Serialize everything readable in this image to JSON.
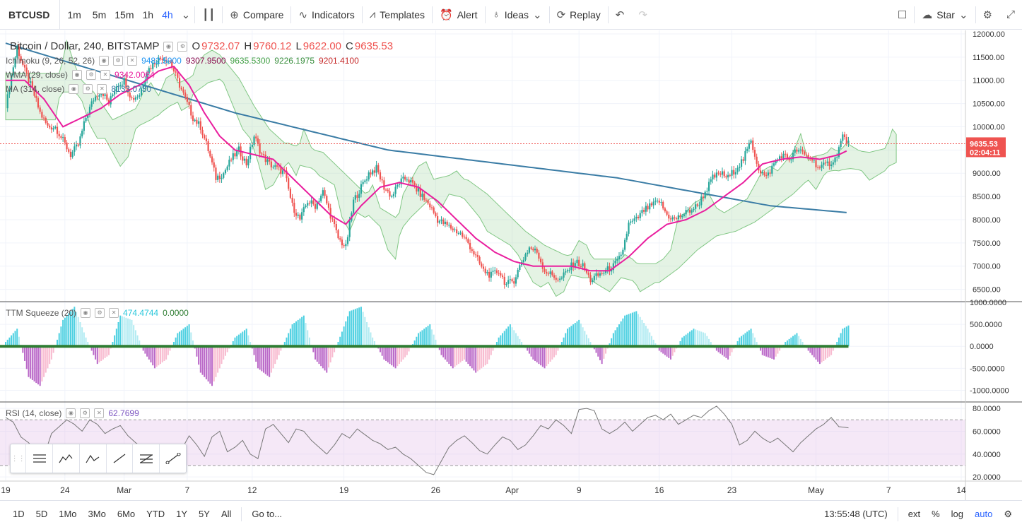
{
  "toolbar": {
    "symbol": "BTCUSD",
    "intervals": [
      "1m",
      "5m",
      "15m",
      "1h",
      "4h"
    ],
    "active_interval": "4h",
    "compare": "Compare",
    "indicators": "Indicators",
    "templates": "Templates",
    "alert": "Alert",
    "ideas": "Ideas",
    "replay": "Replay",
    "star": "Star"
  },
  "legend": {
    "title": "Bitcoin / Dollar, 240, BITSTAMP",
    "o_label": "O",
    "o": "9732.07",
    "h_label": "H",
    "h": "9760.12",
    "l_label": "L",
    "l": "9622.00",
    "c_label": "C",
    "c": "9635.53",
    "ichimoku": "Ichimoku (9, 26, 52, 26)",
    "ichimoku_values": [
      "9482.5900",
      "9307.9500",
      "9635.5300",
      "9226.1975",
      "9201.4100"
    ],
    "wma": "WMA (29, close)",
    "wma_value": "9342.0064",
    "ma": "MA (314, close)",
    "ma_value": "8133.0730"
  },
  "ttm": {
    "label": "TTM Squeeze (20)",
    "v1": "474.4744",
    "v2": "0.0000"
  },
  "rsi": {
    "label": "RSI (14, close)",
    "value": "62.7699"
  },
  "price_tag": "9635.53",
  "countdown": "02:04:11",
  "colors": {
    "up": "#26a69a",
    "down": "#ef5350",
    "wma": "#e91e9e",
    "ma": "#3a7ca5",
    "accent": "#2962ff"
  },
  "chart_data": {
    "type": "line",
    "price_axis": {
      "min": 6250,
      "max": 12000,
      "ticks": [
        12000,
        11500,
        11000,
        10500,
        10000,
        9500,
        9000,
        8500,
        8000,
        7500,
        7000,
        6500
      ]
    },
    "ttm_axis": {
      "min": -1250,
      "max": 1000,
      "ticks": [
        1000,
        500,
        0,
        -500,
        -1000
      ],
      "tick_labels": [
        "1000.0000",
        "500.0000",
        "0.0000",
        "-500.0000",
        "-1000.0000"
      ]
    },
    "rsi_axis": {
      "min": 17,
      "max": 85,
      "ticks": [
        80,
        60,
        40,
        20
      ],
      "tick_labels": [
        "80.0000",
        "60.0000",
        "40.0000",
        "20.0000"
      ],
      "bands": [
        70,
        30
      ]
    },
    "x_ticks": [
      "19",
      "24",
      "Mar",
      "7",
      "12",
      "19",
      "26",
      "Apr",
      "9",
      "16",
      "23",
      "May",
      "7",
      "14"
    ],
    "x_tick_index": [
      0,
      31,
      62,
      95,
      129,
      177,
      225,
      265,
      300,
      342,
      380,
      424,
      462,
      500
    ],
    "price_path": [
      [
        0,
        10400
      ],
      [
        3,
        11100
      ],
      [
        6,
        11700
      ],
      [
        10,
        11200
      ],
      [
        14,
        10800
      ],
      [
        18,
        10300
      ],
      [
        22,
        10000
      ],
      [
        26,
        10000
      ],
      [
        30,
        9700
      ],
      [
        34,
        9400
      ],
      [
        38,
        9600
      ],
      [
        42,
        10200
      ],
      [
        46,
        10600
      ],
      [
        50,
        10800
      ],
      [
        54,
        10500
      ],
      [
        58,
        10900
      ],
      [
        62,
        11000
      ],
      [
        66,
        10600
      ],
      [
        70,
        10700
      ],
      [
        74,
        11200
      ],
      [
        78,
        11400
      ],
      [
        82,
        11500
      ],
      [
        86,
        11400
      ],
      [
        90,
        11000
      ],
      [
        94,
        10600
      ],
      [
        98,
        10200
      ],
      [
        102,
        10000
      ],
      [
        106,
        9500
      ],
      [
        110,
        8900
      ],
      [
        114,
        9000
      ],
      [
        118,
        9300
      ],
      [
        122,
        9500
      ],
      [
        126,
        9200
      ],
      [
        130,
        9800
      ],
      [
        134,
        9400
      ],
      [
        138,
        9200
      ],
      [
        142,
        9100
      ],
      [
        146,
        9000
      ],
      [
        150,
        8300
      ],
      [
        154,
        8000
      ],
      [
        158,
        8400
      ],
      [
        162,
        8300
      ],
      [
        166,
        8600
      ],
      [
        170,
        8100
      ],
      [
        174,
        7600
      ],
      [
        178,
        7400
      ],
      [
        182,
        8400
      ],
      [
        186,
        8700
      ],
      [
        190,
        9000
      ],
      [
        194,
        9100
      ],
      [
        198,
        8700
      ],
      [
        202,
        8500
      ],
      [
        206,
        8800
      ],
      [
        210,
        8900
      ],
      [
        214,
        8700
      ],
      [
        218,
        8500
      ],
      [
        222,
        8300
      ],
      [
        226,
        8000
      ],
      [
        230,
        7900
      ],
      [
        234,
        7800
      ],
      [
        238,
        7700
      ],
      [
        242,
        7500
      ],
      [
        246,
        7200
      ],
      [
        250,
        6900
      ],
      [
        254,
        6800
      ],
      [
        258,
        6900
      ],
      [
        262,
        6600
      ],
      [
        266,
        6700
      ],
      [
        270,
        7100
      ],
      [
        274,
        7400
      ],
      [
        278,
        7300
      ],
      [
        282,
        6900
      ],
      [
        286,
        6800
      ],
      [
        290,
        6700
      ],
      [
        294,
        6900
      ],
      [
        298,
        7100
      ],
      [
        302,
        7000
      ],
      [
        306,
        6700
      ],
      [
        310,
        6800
      ],
      [
        314,
        6900
      ],
      [
        318,
        7000
      ],
      [
        322,
        7200
      ],
      [
        326,
        7900
      ],
      [
        330,
        8000
      ],
      [
        334,
        8200
      ],
      [
        338,
        8300
      ],
      [
        342,
        8400
      ],
      [
        346,
        8100
      ],
      [
        350,
        8000
      ],
      [
        354,
        8100
      ],
      [
        358,
        8200
      ],
      [
        362,
        8300
      ],
      [
        366,
        8600
      ],
      [
        370,
        8900
      ],
      [
        374,
        9000
      ],
      [
        378,
        8900
      ],
      [
        382,
        9100
      ],
      [
        386,
        9300
      ],
      [
        390,
        9700
      ],
      [
        394,
        9100
      ],
      [
        398,
        8900
      ],
      [
        402,
        9200
      ],
      [
        406,
        9400
      ],
      [
        410,
        9300
      ],
      [
        414,
        9500
      ],
      [
        418,
        9400
      ],
      [
        422,
        9300
      ],
      [
        426,
        9100
      ],
      [
        430,
        9200
      ],
      [
        434,
        9300
      ],
      [
        438,
        9800
      ],
      [
        441,
        9635
      ]
    ],
    "wma_path": [
      [
        0,
        11000
      ],
      [
        10,
        11000
      ],
      [
        20,
        10600
      ],
      [
        30,
        10000
      ],
      [
        40,
        10200
      ],
      [
        50,
        10400
      ],
      [
        60,
        10700
      ],
      [
        70,
        10900
      ],
      [
        80,
        11200
      ],
      [
        88,
        11300
      ],
      [
        96,
        10900
      ],
      [
        104,
        10300
      ],
      [
        112,
        9800
      ],
      [
        120,
        9500
      ],
      [
        130,
        9400
      ],
      [
        140,
        9300
      ],
      [
        150,
        8900
      ],
      [
        160,
        8500
      ],
      [
        170,
        8100
      ],
      [
        178,
        7900
      ],
      [
        186,
        8300
      ],
      [
        196,
        8700
      ],
      [
        206,
        8800
      ],
      [
        216,
        8700
      ],
      [
        226,
        8400
      ],
      [
        236,
        8000
      ],
      [
        246,
        7600
      ],
      [
        256,
        7300
      ],
      [
        266,
        7100
      ],
      [
        276,
        7000
      ],
      [
        286,
        7000
      ],
      [
        296,
        7000
      ],
      [
        306,
        6900
      ],
      [
        316,
        6900
      ],
      [
        326,
        7200
      ],
      [
        336,
        7600
      ],
      [
        346,
        7900
      ],
      [
        356,
        8000
      ],
      [
        366,
        8200
      ],
      [
        376,
        8500
      ],
      [
        386,
        8800
      ],
      [
        396,
        9200
      ],
      [
        406,
        9300
      ],
      [
        416,
        9350
      ],
      [
        426,
        9300
      ],
      [
        436,
        9400
      ],
      [
        441,
        9500
      ]
    ],
    "ma_path": [
      [
        0,
        11800
      ],
      [
        40,
        11300
      ],
      [
        80,
        10800
      ],
      [
        120,
        10300
      ],
      [
        160,
        9900
      ],
      [
        200,
        9500
      ],
      [
        240,
        9300
      ],
      [
        280,
        9100
      ],
      [
        320,
        8900
      ],
      [
        360,
        8600
      ],
      [
        400,
        8300
      ],
      [
        441,
        8150
      ]
    ],
    "ttm_path": [
      [
        0,
        100
      ],
      [
        6,
        400
      ],
      [
        12,
        -700
      ],
      [
        18,
        -900
      ],
      [
        24,
        -300
      ],
      [
        30,
        600
      ],
      [
        36,
        900
      ],
      [
        42,
        200
      ],
      [
        48,
        -400
      ],
      [
        54,
        -200
      ],
      [
        60,
        700
      ],
      [
        66,
        600
      ],
      [
        72,
        -100
      ],
      [
        78,
        -500
      ],
      [
        84,
        -300
      ],
      [
        90,
        300
      ],
      [
        96,
        500
      ],
      [
        102,
        -600
      ],
      [
        108,
        -900
      ],
      [
        114,
        -300
      ],
      [
        120,
        200
      ],
      [
        126,
        400
      ],
      [
        132,
        -500
      ],
      [
        138,
        -700
      ],
      [
        144,
        -100
      ],
      [
        150,
        500
      ],
      [
        156,
        700
      ],
      [
        162,
        -300
      ],
      [
        168,
        -600
      ],
      [
        174,
        100
      ],
      [
        180,
        800
      ],
      [
        186,
        900
      ],
      [
        192,
        200
      ],
      [
        198,
        -300
      ],
      [
        204,
        -500
      ],
      [
        210,
        -200
      ],
      [
        216,
        300
      ],
      [
        222,
        500
      ],
      [
        228,
        -200
      ],
      [
        234,
        -500
      ],
      [
        240,
        -300
      ],
      [
        246,
        -600
      ],
      [
        252,
        -400
      ],
      [
        258,
        200
      ],
      [
        264,
        500
      ],
      [
        270,
        100
      ],
      [
        276,
        -300
      ],
      [
        282,
        -500
      ],
      [
        288,
        -200
      ],
      [
        294,
        400
      ],
      [
        300,
        600
      ],
      [
        306,
        100
      ],
      [
        312,
        -400
      ],
      [
        318,
        300
      ],
      [
        324,
        700
      ],
      [
        330,
        800
      ],
      [
        336,
        400
      ],
      [
        342,
        -100
      ],
      [
        348,
        -300
      ],
      [
        354,
        200
      ],
      [
        360,
        400
      ],
      [
        366,
        300
      ],
      [
        372,
        -100
      ],
      [
        378,
        -300
      ],
      [
        384,
        200
      ],
      [
        390,
        400
      ],
      [
        396,
        -200
      ],
      [
        402,
        -300
      ],
      [
        408,
        100
      ],
      [
        414,
        300
      ],
      [
        420,
        -100
      ],
      [
        426,
        -400
      ],
      [
        432,
        -200
      ],
      [
        438,
        400
      ],
      [
        441,
        474
      ]
    ],
    "rsi_path": [
      [
        0,
        72
      ],
      [
        4,
        68
      ],
      [
        8,
        55
      ],
      [
        12,
        50
      ],
      [
        16,
        42
      ],
      [
        20,
        38
      ],
      [
        24,
        58
      ],
      [
        28,
        64
      ],
      [
        32,
        70
      ],
      [
        36,
        66
      ],
      [
        40,
        60
      ],
      [
        44,
        70
      ],
      [
        48,
        66
      ],
      [
        52,
        58
      ],
      [
        56,
        62
      ],
      [
        60,
        65
      ],
      [
        64,
        56
      ],
      [
        68,
        50
      ],
      [
        72,
        45
      ],
      [
        76,
        38
      ],
      [
        80,
        32
      ],
      [
        84,
        25
      ],
      [
        88,
        30
      ],
      [
        92,
        44
      ],
      [
        96,
        56
      ],
      [
        100,
        48
      ],
      [
        104,
        38
      ],
      [
        108,
        55
      ],
      [
        112,
        60
      ],
      [
        116,
        42
      ],
      [
        120,
        46
      ],
      [
        124,
        52
      ],
      [
        128,
        40
      ],
      [
        132,
        36
      ],
      [
        136,
        62
      ],
      [
        140,
        66
      ],
      [
        144,
        58
      ],
      [
        148,
        50
      ],
      [
        152,
        62
      ],
      [
        156,
        60
      ],
      [
        160,
        52
      ],
      [
        164,
        46
      ],
      [
        168,
        40
      ],
      [
        172,
        48
      ],
      [
        176,
        58
      ],
      [
        180,
        54
      ],
      [
        184,
        62
      ],
      [
        188,
        57
      ],
      [
        192,
        52
      ],
      [
        196,
        49
      ],
      [
        200,
        44
      ],
      [
        204,
        46
      ],
      [
        208,
        40
      ],
      [
        212,
        36
      ],
      [
        216,
        30
      ],
      [
        220,
        24
      ],
      [
        224,
        22
      ],
      [
        228,
        34
      ],
      [
        232,
        46
      ],
      [
        236,
        52
      ],
      [
        240,
        56
      ],
      [
        244,
        50
      ],
      [
        248,
        43
      ],
      [
        252,
        40
      ],
      [
        256,
        48
      ],
      [
        260,
        55
      ],
      [
        264,
        52
      ],
      [
        268,
        44
      ],
      [
        272,
        48
      ],
      [
        276,
        56
      ],
      [
        280,
        65
      ],
      [
        284,
        62
      ],
      [
        288,
        70
      ],
      [
        292,
        65
      ],
      [
        296,
        58
      ],
      [
        300,
        79
      ],
      [
        304,
        80
      ],
      [
        308,
        78
      ],
      [
        312,
        62
      ],
      [
        316,
        58
      ],
      [
        320,
        62
      ],
      [
        324,
        68
      ],
      [
        328,
        60
      ],
      [
        332,
        66
      ],
      [
        336,
        72
      ],
      [
        340,
        74
      ],
      [
        344,
        70
      ],
      [
        348,
        75
      ],
      [
        352,
        66
      ],
      [
        356,
        70
      ],
      [
        360,
        74
      ],
      [
        364,
        72
      ],
      [
        368,
        78
      ],
      [
        372,
        82
      ],
      [
        376,
        75
      ],
      [
        380,
        66
      ],
      [
        384,
        48
      ],
      [
        388,
        52
      ],
      [
        392,
        60
      ],
      [
        396,
        54
      ],
      [
        400,
        50
      ],
      [
        404,
        54
      ],
      [
        408,
        48
      ],
      [
        412,
        42
      ],
      [
        416,
        50
      ],
      [
        420,
        56
      ],
      [
        424,
        62
      ],
      [
        428,
        66
      ],
      [
        432,
        72
      ],
      [
        436,
        64
      ],
      [
        441,
        63
      ]
    ]
  }
}
